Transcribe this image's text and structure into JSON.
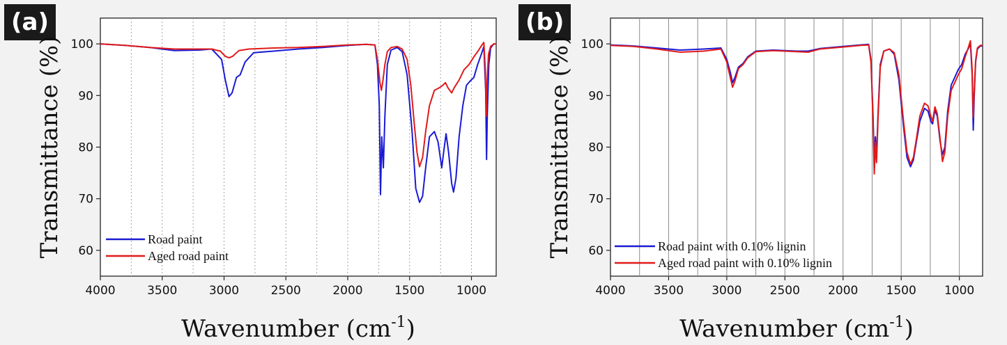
{
  "chart_data": [
    {
      "type": "line",
      "panel_label": "(a)",
      "xlabel": "Wavenumber (cm",
      "xlabel_sup": "-1",
      "xlabel_close": ")",
      "ylabel": "Transmittance (%)",
      "xlim": [
        4000,
        800
      ],
      "ylim": [
        55,
        105
      ],
      "x_ticks": [
        4000,
        3500,
        3000,
        2500,
        2000,
        1500,
        1000
      ],
      "y_ticks": [
        60,
        70,
        80,
        90,
        100
      ],
      "grid": "vertical dotted",
      "legend": "bottom-left",
      "colors": {
        "road": "#1a1ad4",
        "aged": "#e01a1a"
      },
      "series": [
        {
          "name": "Road paint",
          "color": "#1a1ad4",
          "points": [
            [
              4000,
              100
            ],
            [
              3800,
              99.7
            ],
            [
              3600,
              99.3
            ],
            [
              3400,
              98.7
            ],
            [
              3200,
              98.8
            ],
            [
              3100,
              99
            ],
            [
              3020,
              97
            ],
            [
              2990,
              93
            ],
            [
              2960,
              89.8
            ],
            [
              2935,
              90.5
            ],
            [
              2900,
              93.5
            ],
            [
              2870,
              94
            ],
            [
              2830,
              96.5
            ],
            [
              2760,
              98.3
            ],
            [
              2600,
              98.6
            ],
            [
              2400,
              99
            ],
            [
              2200,
              99.3
            ],
            [
              2000,
              99.7
            ],
            [
              1850,
              99.9
            ],
            [
              1780,
              99.8
            ],
            [
              1760,
              96
            ],
            [
              1745,
              88
            ],
            [
              1735,
              70.8
            ],
            [
              1725,
              82
            ],
            [
              1712,
              76
            ],
            [
              1700,
              86
            ],
            [
              1680,
              96
            ],
            [
              1650,
              98.8
            ],
            [
              1600,
              99.3
            ],
            [
              1560,
              98.5
            ],
            [
              1520,
              94
            ],
            [
              1480,
              83
            ],
            [
              1450,
              72
            ],
            [
              1420,
              69.3
            ],
            [
              1395,
              70.5
            ],
            [
              1370,
              76
            ],
            [
              1340,
              82
            ],
            [
              1300,
              83
            ],
            [
              1270,
              81
            ],
            [
              1240,
              76
            ],
            [
              1225,
              79
            ],
            [
              1205,
              82.6
            ],
            [
              1185,
              79
            ],
            [
              1160,
              73
            ],
            [
              1145,
              71.3
            ],
            [
              1125,
              74
            ],
            [
              1100,
              82
            ],
            [
              1070,
              88
            ],
            [
              1040,
              92
            ],
            [
              1010,
              92.8
            ],
            [
              980,
              93.5
            ],
            [
              950,
              96
            ],
            [
              920,
              98
            ],
            [
              900,
              99.5
            ],
            [
              885,
              91
            ],
            [
              878,
              77.6
            ],
            [
              872,
              86
            ],
            [
              860,
              96
            ],
            [
              845,
              99.2
            ],
            [
              820,
              100
            ],
            [
              800,
              100
            ]
          ]
        },
        {
          "name": "Aged road paint",
          "color": "#e01a1a",
          "points": [
            [
              4000,
              100
            ],
            [
              3800,
              99.7
            ],
            [
              3600,
              99.3
            ],
            [
              3400,
              99
            ],
            [
              3200,
              99
            ],
            [
              3100,
              99
            ],
            [
              3030,
              98.6
            ],
            [
              2990,
              97.6
            ],
            [
              2960,
              97.3
            ],
            [
              2930,
              97.6
            ],
            [
              2880,
              98.7
            ],
            [
              2800,
              99
            ],
            [
              2600,
              99.2
            ],
            [
              2400,
              99.3
            ],
            [
              2200,
              99.5
            ],
            [
              2000,
              99.8
            ],
            [
              1850,
              99.9
            ],
            [
              1780,
              99.8
            ],
            [
              1760,
              97
            ],
            [
              1740,
              92.5
            ],
            [
              1728,
              91
            ],
            [
              1715,
              93
            ],
            [
              1700,
              96
            ],
            [
              1680,
              98.5
            ],
            [
              1650,
              99.3
            ],
            [
              1600,
              99.5
            ],
            [
              1560,
              99
            ],
            [
              1520,
              97
            ],
            [
              1490,
              92
            ],
            [
              1460,
              84
            ],
            [
              1440,
              79
            ],
            [
              1420,
              76.2
            ],
            [
              1395,
              78
            ],
            [
              1370,
              83
            ],
            [
              1340,
              88
            ],
            [
              1300,
              91
            ],
            [
              1260,
              91.5
            ],
            [
              1230,
              92
            ],
            [
              1210,
              92.5
            ],
            [
              1190,
              91.5
            ],
            [
              1160,
              90.5
            ],
            [
              1140,
              91.5
            ],
            [
              1100,
              93
            ],
            [
              1060,
              95
            ],
            [
              1020,
              96
            ],
            [
              980,
              97.5
            ],
            [
              950,
              98.5
            ],
            [
              920,
              99.6
            ],
            [
              900,
              100.3
            ],
            [
              888,
              95
            ],
            [
              880,
              86
            ],
            [
              873,
              93
            ],
            [
              862,
              98
            ],
            [
              845,
              99.5
            ],
            [
              820,
              100
            ],
            [
              800,
              100
            ]
          ]
        }
      ]
    },
    {
      "type": "line",
      "panel_label": "(b)",
      "xlabel": "Wavenumber (cm",
      "xlabel_sup": "-1",
      "xlabel_close": ")",
      "ylabel": "Transmittance (%)",
      "xlim": [
        4000,
        800
      ],
      "ylim": [
        55,
        105
      ],
      "x_ticks": [
        4000,
        3500,
        3000,
        2500,
        2000,
        1500,
        1000
      ],
      "y_ticks": [
        60,
        70,
        80,
        90,
        100
      ],
      "grid": "vertical solid",
      "legend": "bottom-left",
      "colors": {
        "road": "#1a1ad4",
        "aged": "#e01a1a"
      },
      "series": [
        {
          "name": "Road paint with 0.10% lignin",
          "color": "#1a1ad4",
          "points": [
            [
              4000,
              99.8
            ],
            [
              3800,
              99.6
            ],
            [
              3600,
              99.2
            ],
            [
              3400,
              98.8
            ],
            [
              3200,
              99
            ],
            [
              3050,
              99.2
            ],
            [
              3000,
              97
            ],
            [
              2970,
              94.5
            ],
            [
              2950,
              92.5
            ],
            [
              2930,
              93.5
            ],
            [
              2900,
              95.5
            ],
            [
              2860,
              96.2
            ],
            [
              2820,
              97.5
            ],
            [
              2750,
              98.6
            ],
            [
              2600,
              98.8
            ],
            [
              2400,
              98.6
            ],
            [
              2300,
              98.6
            ],
            [
              2200,
              99.1
            ],
            [
              2000,
              99.5
            ],
            [
              1850,
              99.8
            ],
            [
              1780,
              99.9
            ],
            [
              1760,
              97
            ],
            [
              1742,
              86
            ],
            [
              1730,
              76
            ],
            [
              1722,
              82
            ],
            [
              1712,
              78
            ],
            [
              1700,
              86
            ],
            [
              1680,
              96
            ],
            [
              1650,
              98.6
            ],
            [
              1600,
              99
            ],
            [
              1560,
              98
            ],
            [
              1520,
              93
            ],
            [
              1480,
              84
            ],
            [
              1450,
              78
            ],
            [
              1420,
              76.2
            ],
            [
              1395,
              77.5
            ],
            [
              1370,
              81
            ],
            [
              1340,
              85
            ],
            [
              1300,
              87.5
            ],
            [
              1270,
              87
            ],
            [
              1245,
              85
            ],
            [
              1230,
              84.5
            ],
            [
              1210,
              87.2
            ],
            [
              1190,
              86
            ],
            [
              1165,
              81
            ],
            [
              1145,
              78.5
            ],
            [
              1125,
              80
            ],
            [
              1100,
              87
            ],
            [
              1070,
              92
            ],
            [
              1040,
              93.5
            ],
            [
              1010,
              95
            ],
            [
              980,
              96
            ],
            [
              950,
              98
            ],
            [
              920,
              99.2
            ],
            [
              905,
              100.2
            ],
            [
              890,
              94
            ],
            [
              880,
              83.3
            ],
            [
              872,
              90
            ],
            [
              860,
              96.5
            ],
            [
              845,
              99
            ],
            [
              820,
              99.6
            ],
            [
              800,
              99.6
            ]
          ]
        },
        {
          "name": "Aged road paint with 0.10% lignin",
          "color": "#e01a1a",
          "points": [
            [
              4000,
              99.7
            ],
            [
              3800,
              99.5
            ],
            [
              3600,
              99
            ],
            [
              3400,
              98.4
            ],
            [
              3200,
              98.6
            ],
            [
              3050,
              99
            ],
            [
              3000,
              96.5
            ],
            [
              2970,
              93.5
            ],
            [
              2950,
              91.6
            ],
            [
              2930,
              92.8
            ],
            [
              2900,
              95.2
            ],
            [
              2860,
              96
            ],
            [
              2820,
              97.3
            ],
            [
              2750,
              98.5
            ],
            [
              2600,
              98.7
            ],
            [
              2400,
              98.5
            ],
            [
              2300,
              98.4
            ],
            [
              2200,
              99
            ],
            [
              2000,
              99.4
            ],
            [
              1850,
              99.7
            ],
            [
              1780,
              99.8
            ],
            [
              1760,
              96.5
            ],
            [
              1742,
              85
            ],
            [
              1732,
              74.8
            ],
            [
              1722,
              81
            ],
            [
              1712,
              77
            ],
            [
              1700,
              85
            ],
            [
              1680,
              95.5
            ],
            [
              1650,
              98.6
            ],
            [
              1600,
              99
            ],
            [
              1560,
              98.3
            ],
            [
              1520,
              94
            ],
            [
              1480,
              85
            ],
            [
              1450,
              79
            ],
            [
              1420,
              76.7
            ],
            [
              1395,
              78
            ],
            [
              1370,
              81.5
            ],
            [
              1340,
              86
            ],
            [
              1300,
              88.5
            ],
            [
              1270,
              88
            ],
            [
              1245,
              86
            ],
            [
              1230,
              85
            ],
            [
              1210,
              87.8
            ],
            [
              1190,
              86.5
            ],
            [
              1165,
              81.5
            ],
            [
              1145,
              77.2
            ],
            [
              1125,
              79
            ],
            [
              1100,
              86
            ],
            [
              1070,
              91
            ],
            [
              1040,
              92.5
            ],
            [
              1010,
              94
            ],
            [
              980,
              95.2
            ],
            [
              950,
              97.5
            ],
            [
              920,
              99.5
            ],
            [
              905,
              100.6
            ],
            [
              890,
              95
            ],
            [
              880,
              85.8
            ],
            [
              872,
              91
            ],
            [
              860,
              96.8
            ],
            [
              845,
              99.2
            ],
            [
              820,
              99.7
            ],
            [
              800,
              99.7
            ]
          ]
        }
      ]
    }
  ]
}
